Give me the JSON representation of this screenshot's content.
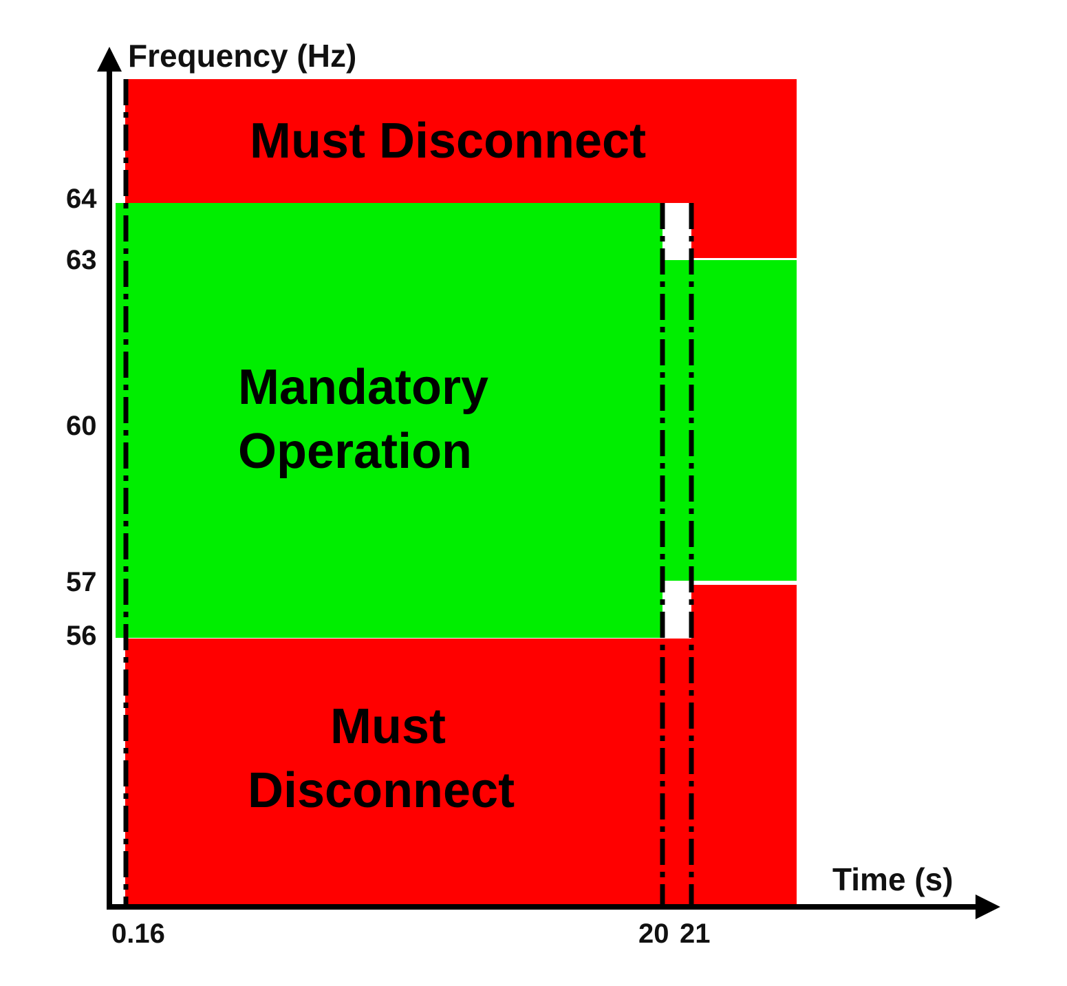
{
  "axes": {
    "y_title": "Frequency (Hz)",
    "x_title": "Time (s)",
    "y_ticks": [
      "64",
      "63",
      "60",
      "57",
      "56"
    ],
    "x_ticks": [
      "0.16",
      "20",
      "21"
    ]
  },
  "zones": {
    "upper_disconnect": "Must Disconnect",
    "mandatory_line1": "Mandatory",
    "mandatory_line2": "Operation",
    "lower_disconnect_line1": "Must",
    "lower_disconnect_line2": "Disconnect"
  },
  "colors": {
    "disconnect": "#ff0000",
    "mandatory": "#00ee00",
    "axis": "#000000",
    "boundary_lines": "#000000"
  }
}
